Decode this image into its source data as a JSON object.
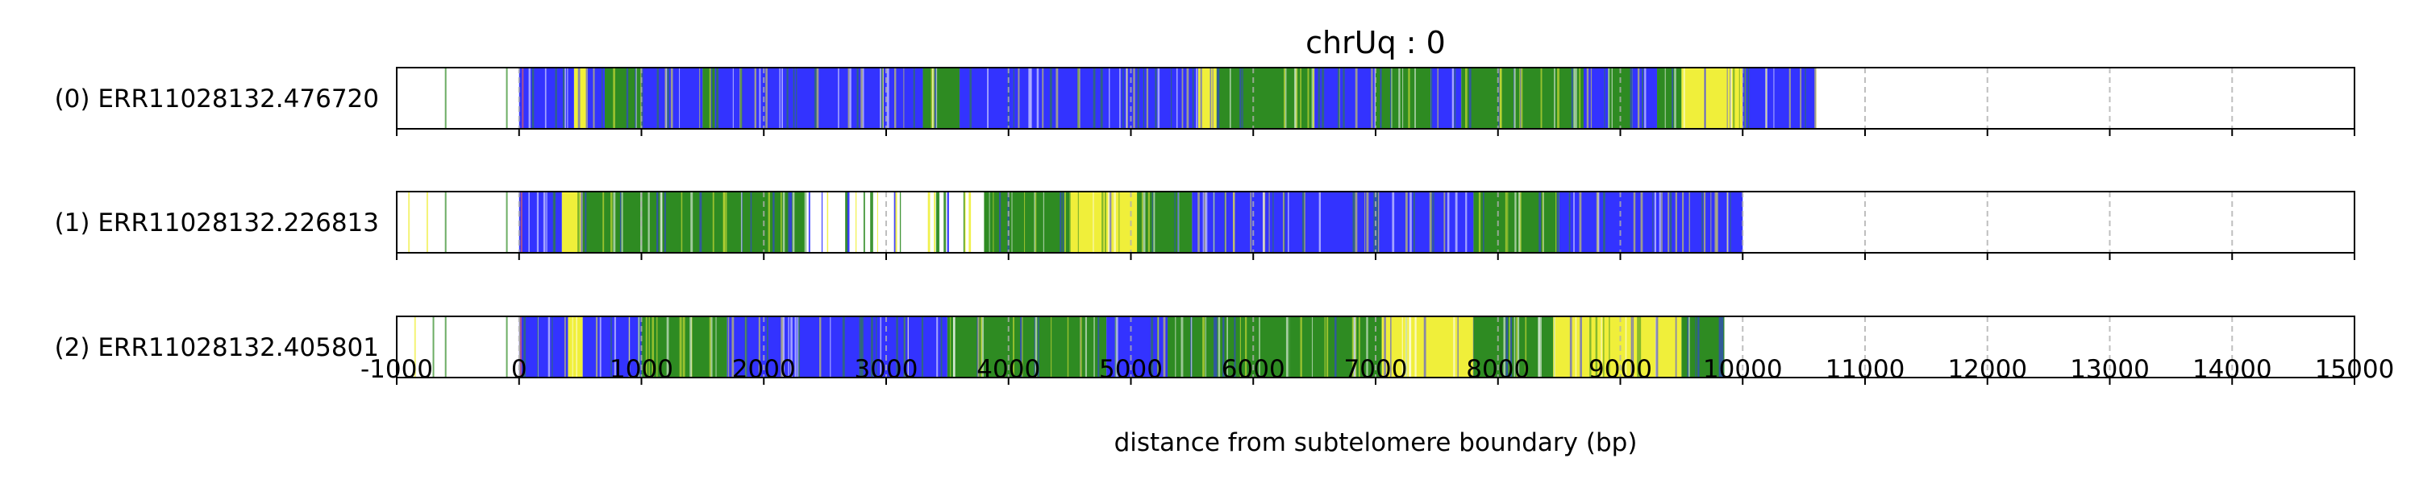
{
  "chart_data": {
    "type": "read-track",
    "title": "chrUq : 0",
    "xlabel": "distance from subtelomere boundary (bp)",
    "xlim": [
      -1000,
      15000
    ],
    "xticks": [
      -1000,
      0,
      1000,
      2000,
      3000,
      4000,
      5000,
      6000,
      7000,
      8000,
      9000,
      10000,
      11000,
      12000,
      13000,
      14000,
      15000
    ],
    "xtick_labels": [
      "-1000",
      "0",
      "1000",
      "2000",
      "3000",
      "4000",
      "5000",
      "6000",
      "7000",
      "8000",
      "9000",
      "10000",
      "11000",
      "12000",
      "13000",
      "14000",
      "15000"
    ],
    "grid": "vertical dashed at major ticks",
    "colors": {
      "blue": "#3333ff",
      "green": "#2e8b22",
      "yellow": "#f0ef3a",
      "white": "#ffffff",
      "boundary": "#e06060"
    },
    "reads": [
      {
        "label": "(0) ERR11028132.476720",
        "extent": [
          0,
          10600
        ],
        "segments": [
          [
            0,
            450,
            "blue"
          ],
          [
            450,
            560,
            "yellow"
          ],
          [
            560,
            700,
            "blue"
          ],
          [
            700,
            1000,
            "green"
          ],
          [
            1000,
            1500,
            "blue"
          ],
          [
            1500,
            1600,
            "green"
          ],
          [
            1600,
            3300,
            "blue"
          ],
          [
            3300,
            3600,
            "green"
          ],
          [
            3600,
            5550,
            "blue"
          ],
          [
            5550,
            5700,
            "yellow"
          ],
          [
            5700,
            6500,
            "green"
          ],
          [
            6500,
            7000,
            "blue"
          ],
          [
            7000,
            7450,
            "green"
          ],
          [
            7450,
            7700,
            "blue"
          ],
          [
            7700,
            8700,
            "green"
          ],
          [
            8700,
            8900,
            "blue"
          ],
          [
            8900,
            9100,
            "green"
          ],
          [
            9100,
            9300,
            "blue"
          ],
          [
            9300,
            9500,
            "green"
          ],
          [
            9500,
            10000,
            "yellow"
          ],
          [
            10000,
            10600,
            "blue"
          ]
        ],
        "outliers": [
          [
            -600,
            "green"
          ],
          [
            -100,
            "green"
          ],
          [
            30,
            "boundary"
          ]
        ]
      },
      {
        "label": "(1) ERR11028132.226813",
        "extent": [
          0,
          10000
        ],
        "segments": [
          [
            0,
            350,
            "blue"
          ],
          [
            350,
            520,
            "yellow"
          ],
          [
            520,
            2350,
            "green"
          ],
          [
            2350,
            3800,
            "white"
          ],
          [
            3800,
            4500,
            "green"
          ],
          [
            4500,
            5050,
            "yellow"
          ],
          [
            5050,
            5500,
            "green"
          ],
          [
            5500,
            7800,
            "blue"
          ],
          [
            7800,
            8500,
            "green"
          ],
          [
            8500,
            10000,
            "blue"
          ]
        ],
        "outliers": [
          [
            -900,
            "yellow"
          ],
          [
            -750,
            "yellow"
          ],
          [
            -600,
            "green"
          ],
          [
            -100,
            "green"
          ],
          [
            20,
            "boundary"
          ]
        ]
      },
      {
        "label": "(2) ERR11028132.405801",
        "extent": [
          0,
          9850
        ],
        "segments": [
          [
            0,
            400,
            "blue"
          ],
          [
            400,
            520,
            "yellow"
          ],
          [
            520,
            1000,
            "blue"
          ],
          [
            1000,
            1700,
            "green"
          ],
          [
            1700,
            3500,
            "blue"
          ],
          [
            3500,
            4800,
            "green"
          ],
          [
            4800,
            5300,
            "blue"
          ],
          [
            5300,
            6300,
            "green"
          ],
          [
            6300,
            7050,
            "green"
          ],
          [
            7050,
            7800,
            "yellow"
          ],
          [
            7800,
            8450,
            "green"
          ],
          [
            8450,
            9500,
            "yellow"
          ],
          [
            9500,
            9850,
            "green"
          ]
        ],
        "outliers": [
          [
            -850,
            "yellow"
          ],
          [
            -700,
            "green"
          ],
          [
            -600,
            "green"
          ],
          [
            -100,
            "green"
          ],
          [
            15,
            "boundary"
          ]
        ]
      }
    ]
  }
}
